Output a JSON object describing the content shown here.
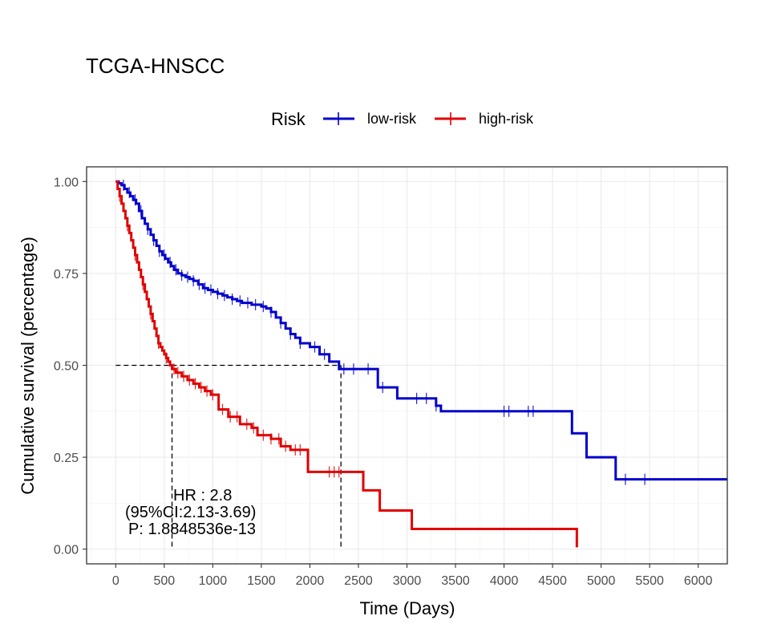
{
  "chart_data": {
    "type": "line",
    "title": "TCGA-HNSCC",
    "xlabel": "Time (Days)",
    "ylabel": "Cumulative survival (percentage)",
    "xlim": [
      -300,
      6300
    ],
    "ylim": [
      -0.04,
      1.04
    ],
    "xticks": [
      0,
      500,
      1000,
      1500,
      2000,
      2500,
      3000,
      3500,
      4000,
      4500,
      5000,
      5500,
      6000
    ],
    "yticks": [
      0.0,
      0.25,
      0.5,
      0.75,
      1.0
    ],
    "ytick_labels": [
      "0.00",
      "0.25",
      "0.50",
      "0.75",
      "1.00"
    ],
    "grid": true,
    "legend": {
      "title": "Risk",
      "position": "top",
      "entries": [
        "low-risk",
        "high-risk"
      ]
    },
    "series": [
      {
        "name": "low-risk",
        "color": "#0000cc",
        "step": true,
        "x": [
          0,
          30,
          60,
          90,
          120,
          150,
          180,
          210,
          240,
          270,
          300,
          330,
          360,
          390,
          420,
          450,
          480,
          510,
          540,
          570,
          600,
          640,
          680,
          720,
          760,
          800,
          850,
          900,
          950,
          1000,
          1050,
          1100,
          1150,
          1200,
          1250,
          1300,
          1350,
          1400,
          1500,
          1550,
          1600,
          1650,
          1700,
          1750,
          1800,
          1850,
          1900,
          2000,
          2100,
          2200,
          2300,
          2700,
          2900,
          3300,
          3350,
          4700,
          4850,
          5150,
          6300
        ],
        "y": [
          1.0,
          0.995,
          0.99,
          0.98,
          0.97,
          0.96,
          0.95,
          0.94,
          0.92,
          0.9,
          0.885,
          0.87,
          0.855,
          0.84,
          0.825,
          0.81,
          0.8,
          0.79,
          0.78,
          0.77,
          0.76,
          0.75,
          0.745,
          0.74,
          0.735,
          0.73,
          0.72,
          0.71,
          0.705,
          0.7,
          0.695,
          0.69,
          0.685,
          0.68,
          0.675,
          0.67,
          0.67,
          0.665,
          0.66,
          0.655,
          0.645,
          0.63,
          0.615,
          0.6,
          0.585,
          0.575,
          0.56,
          0.55,
          0.53,
          0.51,
          0.49,
          0.44,
          0.41,
          0.39,
          0.375,
          0.315,
          0.25,
          0.19,
          0.19
        ],
        "censor_x": [
          80,
          140,
          200,
          260,
          330,
          390,
          450,
          500,
          560,
          620,
          680,
          740,
          800,
          860,
          920,
          980,
          1050,
          1120,
          1200,
          1280,
          1360,
          1440,
          1520,
          1600,
          1700,
          1800,
          1900,
          2050,
          2150,
          2350,
          2450,
          2600,
          2750,
          3100,
          3200,
          3300,
          4000,
          4050,
          4250,
          4300,
          5250,
          5450
        ]
      },
      {
        "name": "high-risk",
        "color": "#e00000",
        "step": true,
        "x": [
          0,
          20,
          40,
          60,
          80,
          100,
          120,
          140,
          160,
          180,
          200,
          220,
          240,
          260,
          280,
          300,
          320,
          340,
          360,
          380,
          400,
          420,
          440,
          460,
          480,
          500,
          520,
          540,
          560,
          580,
          620,
          680,
          740,
          800,
          860,
          920,
          980,
          1060,
          1160,
          1280,
          1400,
          1460,
          1600,
          1700,
          1800,
          1980,
          2550,
          2720,
          3050,
          4750
        ],
        "y": [
          1.0,
          0.98,
          0.96,
          0.94,
          0.92,
          0.9,
          0.88,
          0.86,
          0.84,
          0.82,
          0.8,
          0.78,
          0.76,
          0.74,
          0.72,
          0.7,
          0.68,
          0.66,
          0.64,
          0.62,
          0.6,
          0.58,
          0.56,
          0.55,
          0.54,
          0.53,
          0.52,
          0.51,
          0.5,
          0.49,
          0.48,
          0.47,
          0.46,
          0.45,
          0.44,
          0.43,
          0.42,
          0.38,
          0.36,
          0.34,
          0.33,
          0.31,
          0.3,
          0.28,
          0.27,
          0.21,
          0.16,
          0.105,
          0.055,
          0.005
        ],
        "censor_x": [
          40,
          120,
          200,
          280,
          360,
          440,
          520,
          600,
          640,
          700,
          760,
          820,
          880,
          940,
          1000,
          1100,
          1180,
          1250,
          1350,
          1420,
          1520,
          1600,
          1680,
          1750,
          1850,
          1900,
          2200,
          2250,
          2300
        ]
      }
    ],
    "median_lines": [
      {
        "x": 580,
        "y": 0.5
      },
      {
        "x": 2320,
        "y": 0.5
      }
    ],
    "annotations": [
      "HR : 2.8",
      "(95%CI:2.13-3.69)",
      "P: 1.8848536e-13"
    ]
  }
}
